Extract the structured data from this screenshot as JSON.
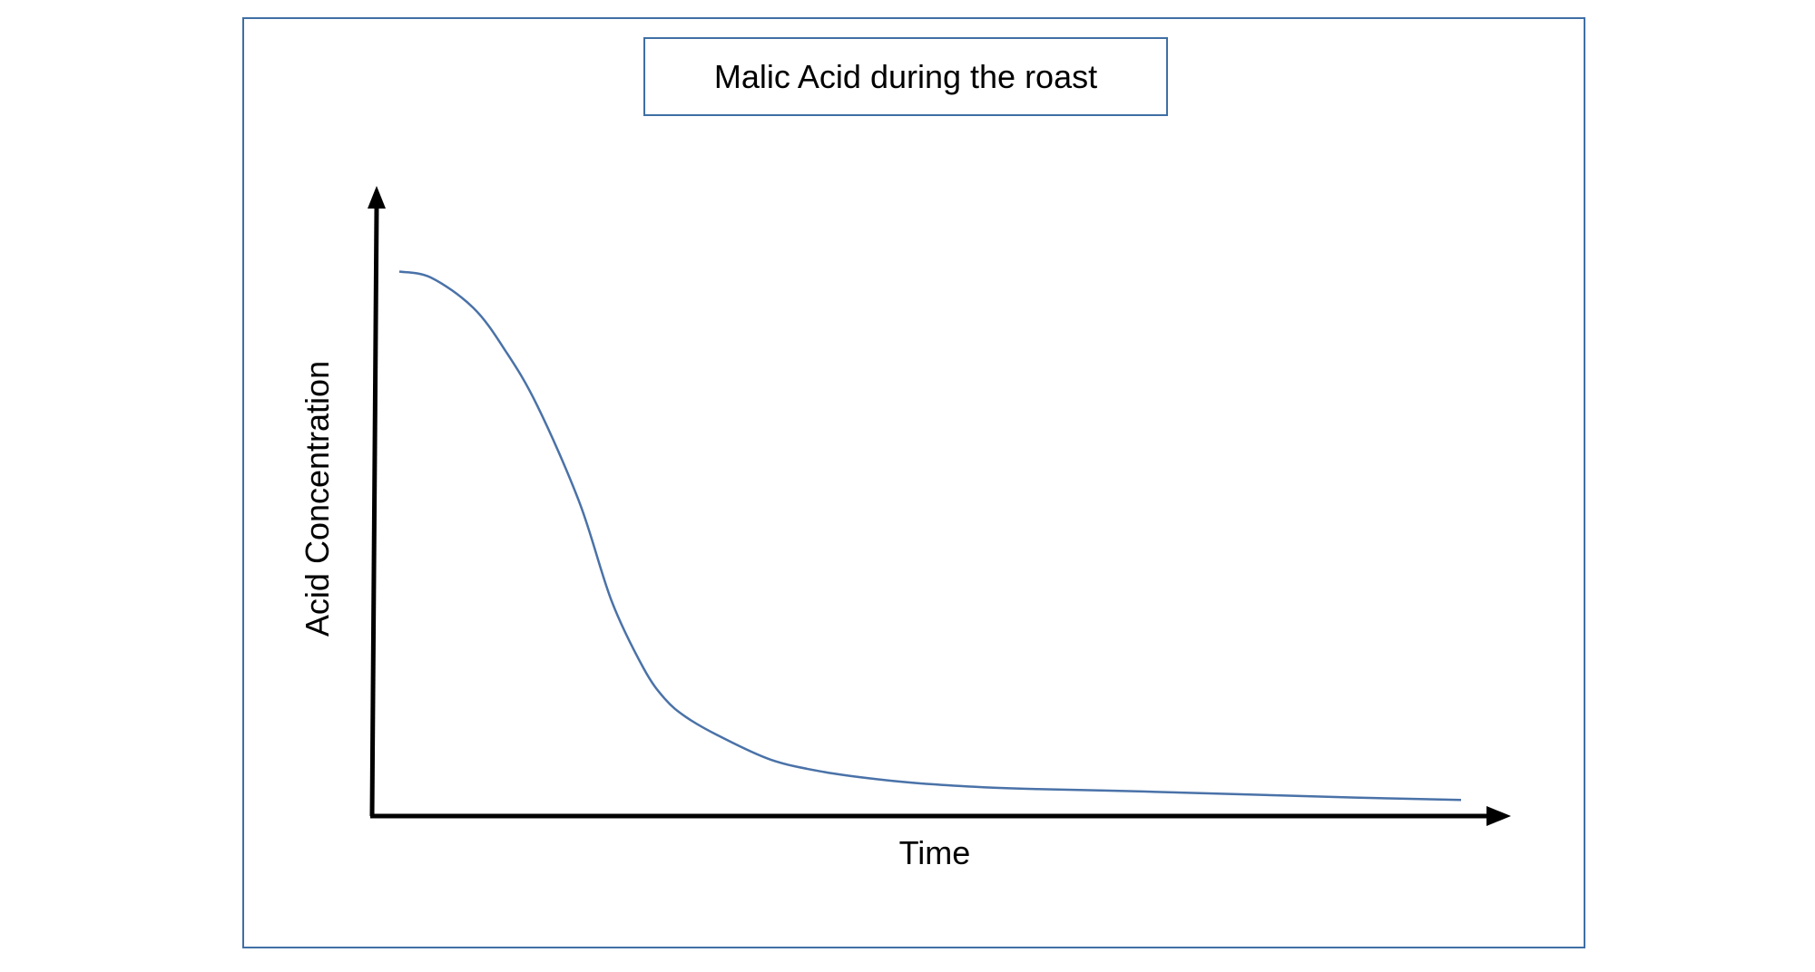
{
  "chart_data": {
    "type": "line",
    "title": "Malic Acid during the roast",
    "xlabel": "Time",
    "ylabel": "Acid Concentration",
    "xlim": [
      0,
      100
    ],
    "ylim": [
      0,
      100
    ],
    "grid": false,
    "axis_ticks": false,
    "series": [
      {
        "color": "#4a72a8",
        "x": [
          0,
          3,
          7,
          10,
          13,
          17,
          20,
          23,
          25,
          27,
          30,
          35,
          40,
          45,
          50,
          55,
          60,
          70,
          80,
          90,
          100
        ],
        "y": [
          87,
          86,
          81,
          74,
          65,
          49,
          33,
          22,
          17,
          14,
          11,
          7,
          5,
          3.8,
          3.0,
          2.5,
          2.2,
          1.8,
          1.3,
          0.8,
          0.4
        ]
      }
    ]
  }
}
